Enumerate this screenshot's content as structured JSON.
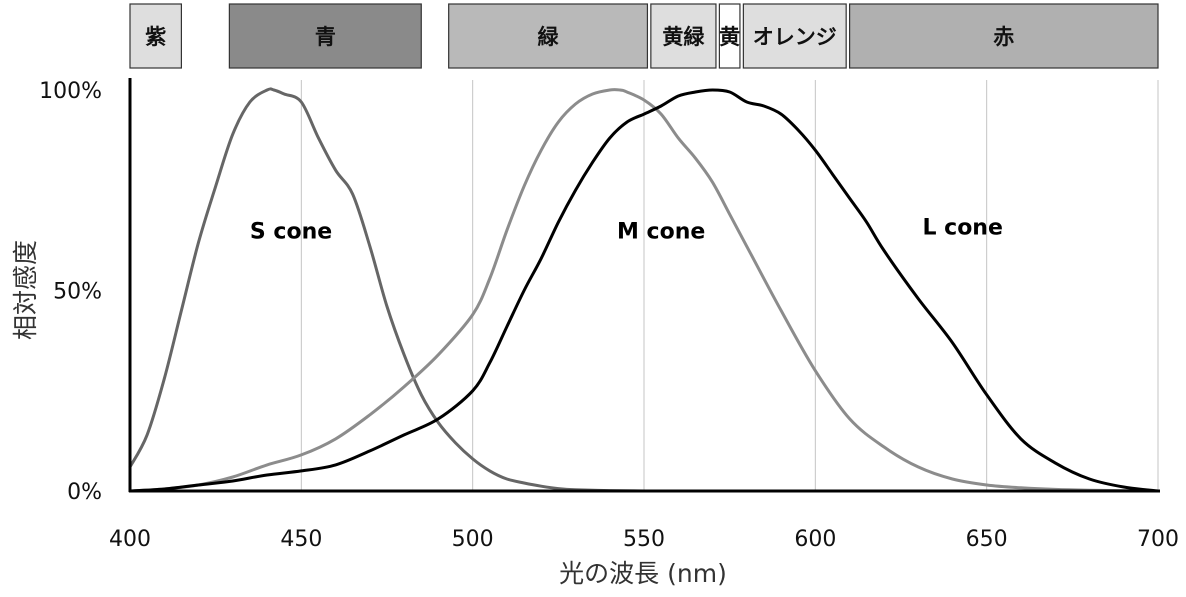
{
  "chart_data": {
    "type": "line",
    "xlabel": "光の波長 (nm)",
    "ylabel": "相対感度",
    "xlim": [
      400,
      700
    ],
    "ylim": [
      0,
      100
    ],
    "x_ticks": [
      400,
      450,
      500,
      550,
      600,
      650,
      700
    ],
    "y_ticks": [
      {
        "value": 0,
        "label": "0%"
      },
      {
        "value": 50,
        "label": "50%"
      },
      {
        "value": 100,
        "label": "100%"
      }
    ],
    "grid": {
      "vertical": true,
      "horizontal": false
    },
    "color_bands": [
      {
        "label": "紫",
        "start": 400,
        "end": 415,
        "color": "#dedede"
      },
      {
        "label": "青",
        "start": 429,
        "end": 485,
        "color": "#8a8a8a"
      },
      {
        "label": "緑",
        "start": 493,
        "end": 551,
        "color": "#b9b9b9"
      },
      {
        "label": "黄緑",
        "start": 552,
        "end": 571,
        "color": "#dedede"
      },
      {
        "label": "黄",
        "start": 572,
        "end": 578,
        "color": "#ffffff"
      },
      {
        "label": "オレンジ",
        "start": 579,
        "end": 609,
        "color": "#dedede"
      },
      {
        "label": "赤",
        "start": 610,
        "end": 700,
        "color": "#b0b0b0"
      }
    ],
    "series": [
      {
        "name": "S cone",
        "color": "#666666",
        "label_at": [
          447,
          63
        ],
        "x": [
          400,
          405,
          410,
          415,
          420,
          425,
          430,
          435,
          440,
          442,
          445,
          450,
          455,
          460,
          465,
          470,
          475,
          480,
          485,
          490,
          495,
          500,
          505,
          510,
          515,
          520,
          525,
          530,
          540,
          550,
          560,
          580,
          600
        ],
        "y": [
          6,
          14,
          28,
          45,
          62,
          76,
          89,
          97,
          100,
          100,
          99,
          97,
          88,
          80,
          74,
          61,
          46,
          34,
          24,
          17,
          12,
          8,
          5,
          3,
          2,
          1.2,
          0.6,
          0.3,
          0.1,
          0,
          0,
          0,
          0
        ]
      },
      {
        "name": "M cone",
        "color": "#8c8c8c",
        "label_at": [
          555,
          63
        ],
        "x": [
          400,
          410,
          420,
          430,
          440,
          450,
          460,
          470,
          480,
          490,
          500,
          505,
          510,
          515,
          520,
          525,
          530,
          535,
          540,
          543,
          545,
          550,
          555,
          560,
          565,
          570,
          575,
          580,
          590,
          600,
          610,
          620,
          630,
          640,
          650,
          660,
          670,
          680,
          690,
          700
        ],
        "y": [
          0,
          0.5,
          1.5,
          3.5,
          6.5,
          9,
          13,
          19,
          26,
          34,
          44,
          53,
          65,
          76,
          85,
          92,
          96.5,
          99,
          100,
          100,
          99.5,
          97.5,
          94,
          88,
          83,
          77,
          69,
          61,
          45,
          30,
          18,
          11,
          6,
          3,
          1.5,
          0.8,
          0.4,
          0.2,
          0.1,
          0
        ]
      },
      {
        "name": "L cone",
        "color": "#000000",
        "label_at": [
          643,
          64
        ],
        "x": [
          400,
          410,
          420,
          430,
          440,
          450,
          460,
          470,
          480,
          490,
          500,
          505,
          510,
          515,
          520,
          525,
          530,
          535,
          540,
          545,
          550,
          555,
          560,
          565,
          570,
          575,
          580,
          585,
          590,
          595,
          600,
          605,
          610,
          615,
          620,
          630,
          640,
          650,
          660,
          670,
          680,
          690,
          700
        ],
        "y": [
          0,
          0.5,
          1.5,
          2.5,
          4,
          5,
          6.5,
          10,
          14,
          18,
          25,
          32,
          41,
          50,
          58,
          67,
          75,
          82,
          88,
          92,
          94,
          96,
          98.5,
          99.5,
          100,
          99.5,
          97,
          96,
          94,
          90,
          85,
          79,
          73,
          67,
          60,
          48,
          37,
          24,
          13,
          7,
          3,
          1,
          0
        ]
      }
    ]
  }
}
